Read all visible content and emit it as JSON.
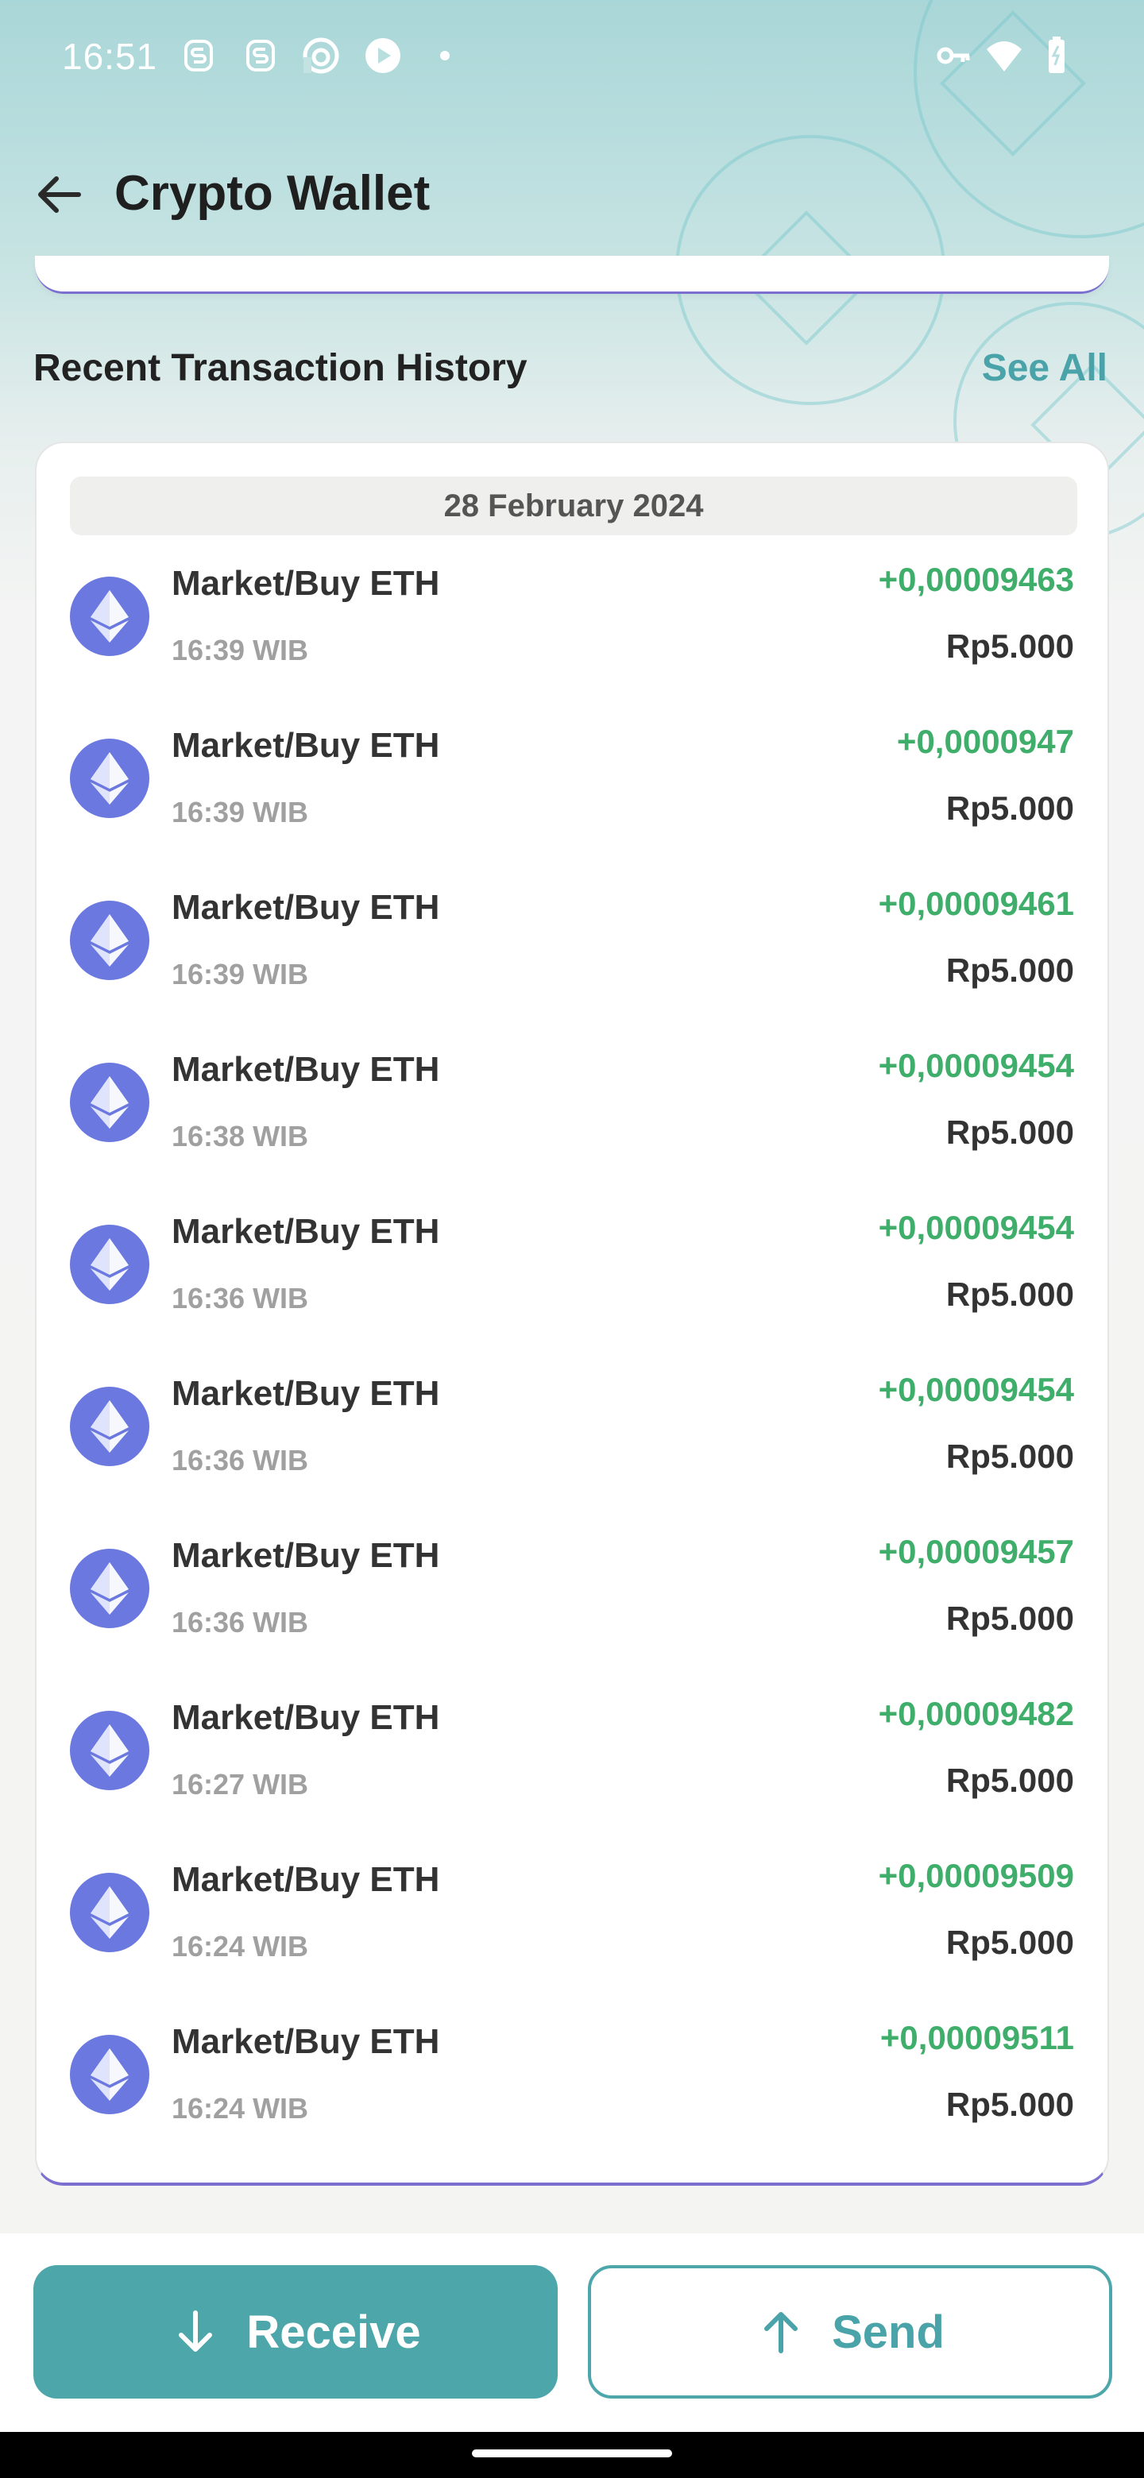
{
  "status_bar": {
    "time": "16:51",
    "left_icons": [
      "s-app-icon",
      "s-app-icon",
      "headphones-app-icon",
      "browser-app-icon",
      "dot-icon"
    ],
    "right_icons": [
      "vpn-key-icon",
      "wifi-icon",
      "battery-icon"
    ]
  },
  "app_bar": {
    "title": "Crypto Wallet",
    "back_icon": "arrow-left-icon"
  },
  "section": {
    "title": "Recent Transaction History",
    "see_all": "See All"
  },
  "transactions": {
    "date": "28 February 2024",
    "items": [
      {
        "name": "Market/Buy ETH",
        "time": "16:39 WIB",
        "amount": "+0,00009463",
        "fiat": "Rp5.000"
      },
      {
        "name": "Market/Buy ETH",
        "time": "16:39 WIB",
        "amount": "+0,0000947",
        "fiat": "Rp5.000"
      },
      {
        "name": "Market/Buy ETH",
        "time": "16:39 WIB",
        "amount": "+0,00009461",
        "fiat": "Rp5.000"
      },
      {
        "name": "Market/Buy ETH",
        "time": "16:38 WIB",
        "amount": "+0,00009454",
        "fiat": "Rp5.000"
      },
      {
        "name": "Market/Buy ETH",
        "time": "16:36 WIB",
        "amount": "+0,00009454",
        "fiat": "Rp5.000"
      },
      {
        "name": "Market/Buy ETH",
        "time": "16:36 WIB",
        "amount": "+0,00009454",
        "fiat": "Rp5.000"
      },
      {
        "name": "Market/Buy ETH",
        "time": "16:36 WIB",
        "amount": "+0,00009457",
        "fiat": "Rp5.000"
      },
      {
        "name": "Market/Buy ETH",
        "time": "16:27 WIB",
        "amount": "+0,00009482",
        "fiat": "Rp5.000"
      },
      {
        "name": "Market/Buy ETH",
        "time": "16:24 WIB",
        "amount": "+0,00009509",
        "fiat": "Rp5.000"
      },
      {
        "name": "Market/Buy ETH",
        "time": "16:24 WIB",
        "amount": "+0,00009511",
        "fiat": "Rp5.000"
      }
    ]
  },
  "actions": {
    "receive": "Receive",
    "send": "Send"
  },
  "colors": {
    "accent": "#4da6aa",
    "positive": "#3fae6a",
    "eth": "#6a78e0"
  }
}
